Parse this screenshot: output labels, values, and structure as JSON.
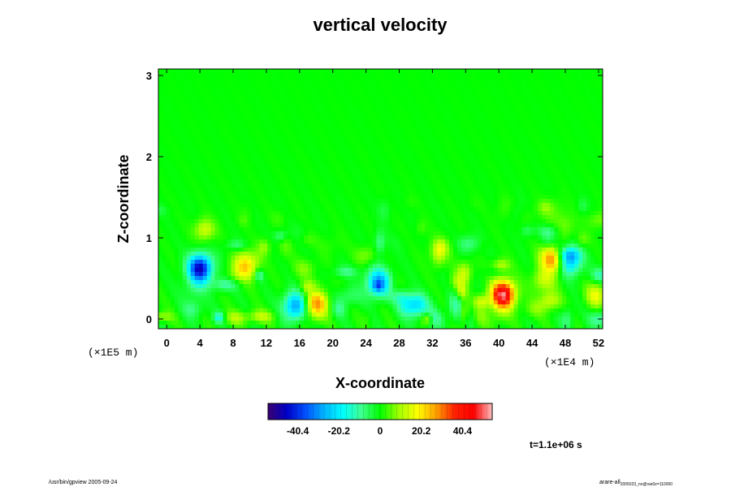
{
  "chart_data": {
    "type": "heatmap",
    "title": "vertical velocity",
    "xlabel": "X-coordinate",
    "ylabel": "Z-coordinate",
    "x_unit": "(×1E4 m)",
    "y_unit": "(×1E5 m)",
    "xlim": [
      -1,
      52.5
    ],
    "ylim": [
      -0.12,
      3.08
    ],
    "x_ticks": [
      "0",
      "4",
      "8",
      "12",
      "16",
      "20",
      "24",
      "28",
      "32",
      "36",
      "40",
      "44",
      "48",
      "52"
    ],
    "y_ticks": [
      "0",
      "1",
      "2",
      "3"
    ],
    "grid": false,
    "colorbar": {
      "ticks": [
        "-40.4",
        "-20.2",
        "0",
        "20.2",
        "40.4"
      ],
      "range": [
        -55,
        55
      ],
      "colors": [
        "#3a0070",
        "#0000c8",
        "#0050ff",
        "#00b4ff",
        "#00ffff",
        "#40ff90",
        "#00ff00",
        "#a0ff00",
        "#ffff00",
        "#ffa000",
        "#ff2000",
        "#ff0000",
        "#ffc0c0"
      ]
    },
    "time_label": "t=1.1e+06 s",
    "features": [
      {
        "x": 4.0,
        "z": 0.62,
        "value": -48,
        "note": "strong downdraft"
      },
      {
        "x": 9.5,
        "z": 0.65,
        "value": 24
      },
      {
        "x": 15.5,
        "z": 0.16,
        "value": -30
      },
      {
        "x": 18.0,
        "z": 0.18,
        "value": 28
      },
      {
        "x": 25.5,
        "z": 0.45,
        "value": -30
      },
      {
        "x": 40.5,
        "z": 0.3,
        "value": 52,
        "note": "strong updraft"
      },
      {
        "x": 46.5,
        "z": 0.75,
        "value": 34
      },
      {
        "x": 48.5,
        "z": 0.72,
        "value": -28
      }
    ]
  },
  "footer": {
    "program": "/usr/bin/gpview 2005-09-24",
    "file": "arare-all",
    "file_sub": "2005023_no@var0z=110000"
  }
}
